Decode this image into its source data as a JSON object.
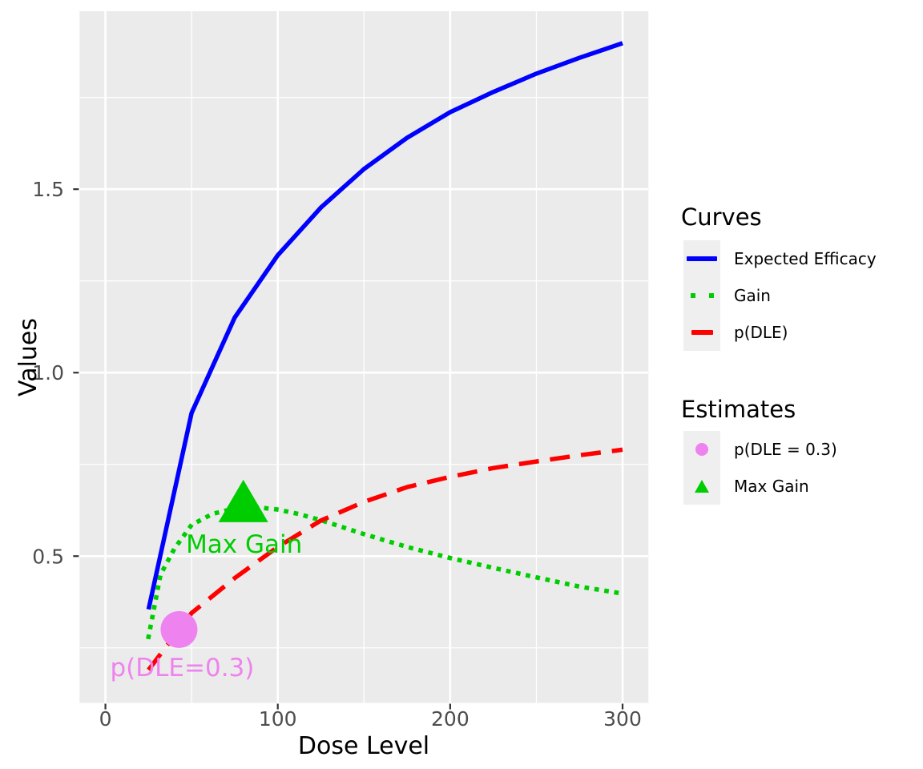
{
  "chart_data": {
    "type": "line",
    "title": "",
    "xlabel": "Dose Level",
    "ylabel": "Values",
    "xlim": [
      -15,
      315
    ],
    "ylim": [
      0.1,
      1.985
    ],
    "x_ticks": [
      "0",
      "100",
      "200",
      "300"
    ],
    "x_tick_values": [
      0,
      100,
      200,
      300
    ],
    "y_ticks": [
      "0.5",
      "1.0",
      "1.5"
    ],
    "y_tick_values": [
      0.5,
      1.0,
      1.5
    ],
    "x_minor_gridlines": [
      50,
      150,
      250
    ],
    "y_minor_gridlines": [
      0.25,
      0.75,
      1.25,
      1.75
    ],
    "grid": true,
    "legend_position": "right",
    "series": [
      {
        "name": "Expected Efficacy",
        "style": "solid",
        "color": "#0000FF",
        "x": [
          25,
          50,
          75,
          100,
          125,
          150,
          175,
          200,
          225,
          250,
          275,
          300
        ],
        "y": [
          0.355,
          0.89,
          1.15,
          1.32,
          1.45,
          1.555,
          1.64,
          1.71,
          1.765,
          1.815,
          1.858,
          1.898
        ]
      },
      {
        "name": "Gain",
        "style": "dotted",
        "color": "#00CD00",
        "x": [
          25,
          32,
          40,
          50,
          62,
          75,
          88,
          100,
          112,
          125,
          150,
          175,
          200,
          225,
          250,
          275,
          300
        ],
        "y": [
          0.28,
          0.45,
          0.52,
          0.585,
          0.615,
          0.63,
          0.633,
          0.627,
          0.615,
          0.598,
          0.56,
          0.525,
          0.495,
          0.468,
          0.442,
          0.417,
          0.398
        ]
      },
      {
        "name": "p(DLE)",
        "style": "dashed",
        "color": "#FF0000",
        "x": [
          25,
          50,
          75,
          100,
          125,
          150,
          175,
          200,
          225,
          250,
          275,
          300
        ],
        "y": [
          0.19,
          0.345,
          0.44,
          0.525,
          0.597,
          0.648,
          0.688,
          0.716,
          0.74,
          0.758,
          0.775,
          0.79
        ]
      }
    ],
    "estimates": [
      {
        "name": "p(DLE = 0.3)",
        "shape": "circle",
        "color": "#EE82EE",
        "dose": 42.7,
        "value": 0.3,
        "annotation": "p(DLE=0.3)"
      },
      {
        "name": "Max Gain",
        "shape": "triangle",
        "color": "#00CD00",
        "dose": 80,
        "value": 0.645,
        "annotation": "Max Gain"
      }
    ],
    "legend": {
      "groups": [
        {
          "title": "Curves",
          "items": [
            {
              "label": "Expected Efficacy",
              "glyph": "solid-line",
              "color": "#0000FF"
            },
            {
              "label": "Gain",
              "glyph": "dotted-line",
              "color": "#00CD00"
            },
            {
              "label": "p(DLE)",
              "glyph": "dashed-line",
              "color": "#FF0000"
            }
          ]
        },
        {
          "title": "Estimates",
          "items": [
            {
              "label": "p(DLE = 0.3)",
              "glyph": "circle",
              "color": "#EE82EE"
            },
            {
              "label": "Max Gain",
              "glyph": "triangle",
              "color": "#00CD00"
            }
          ]
        }
      ]
    },
    "colors": {
      "panel_bg": "#EBEBEB",
      "grid": "#FFFFFF",
      "axis_text": "#4D4D4D",
      "axis_title": "#000000",
      "tick": "#333333",
      "legend_key_bg": "#EFEFEF"
    }
  }
}
